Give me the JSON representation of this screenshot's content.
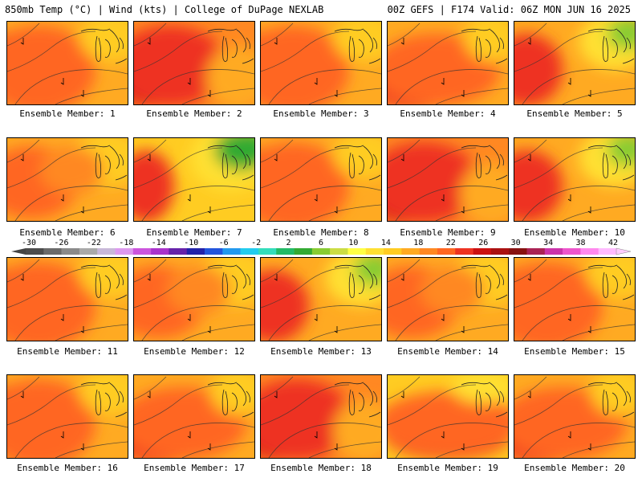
{
  "header": {
    "left_title": "850mb Temp (°C) | Wind (kts) | College of DuPage NEXLAB",
    "right_title": "00Z GEFS | F174 Valid: 06Z MON JUN 16 2025"
  },
  "colorbar": {
    "tick_labels": [
      "-30",
      "-26",
      "-22",
      "-18",
      "-14",
      "-10",
      "-6",
      "-2",
      "2",
      "6",
      "10",
      "14",
      "18",
      "22",
      "26",
      "30",
      "34",
      "38",
      "42"
    ],
    "colors": [
      "#4c4c4c",
      "#6a6a6a",
      "#8a8a8a",
      "#a9a9a9",
      "#c8b8d8",
      "#dd99ee",
      "#cc55dd",
      "#aa33cc",
      "#6622aa",
      "#2222aa",
      "#2255dd",
      "#2299ee",
      "#22ccee",
      "#33ddbb",
      "#22bb66",
      "#33aa33",
      "#88cc33",
      "#ccdd44",
      "#ffff44",
      "#ffe033",
      "#ffcc22",
      "#ffaa22",
      "#ff8822",
      "#ff6622",
      "#ee3322",
      "#cc1111",
      "#aa1111",
      "#881111",
      "#aa2255",
      "#cc33aa",
      "#ee55cc",
      "#ff88ee",
      "#ffbbff"
    ]
  },
  "panel_label_prefix": "Ensemble Member:",
  "panels": [
    {
      "member": "1",
      "label": "Ensemble Member: 1",
      "scheme": "hot-west"
    },
    {
      "member": "2",
      "label": "Ensemble Member: 2",
      "scheme": "very-hot-west"
    },
    {
      "member": "3",
      "label": "Ensemble Member: 3",
      "scheme": "hot-west"
    },
    {
      "member": "4",
      "label": "Ensemble Member: 4",
      "scheme": "hot-sw"
    },
    {
      "member": "5",
      "label": "Ensemble Member: 5",
      "scheme": "cool-ne"
    },
    {
      "member": "6",
      "label": "Ensemble Member: 6",
      "scheme": "warm"
    },
    {
      "member": "7",
      "label": "Ensemble Member: 7",
      "scheme": "cool-ne-strong"
    },
    {
      "member": "8",
      "label": "Ensemble Member: 8",
      "scheme": "hot-west"
    },
    {
      "member": "9",
      "label": "Ensemble Member: 9",
      "scheme": "very-hot-west"
    },
    {
      "member": "10",
      "label": "Ensemble Member: 10",
      "scheme": "cool-ne"
    },
    {
      "member": "11",
      "label": "Ensemble Member: 11",
      "scheme": "hot-west"
    },
    {
      "member": "12",
      "label": "Ensemble Member: 12",
      "scheme": "warm"
    },
    {
      "member": "13",
      "label": "Ensemble Member: 13",
      "scheme": "cool-ne"
    },
    {
      "member": "14",
      "label": "Ensemble Member: 14",
      "scheme": "warm"
    },
    {
      "member": "15",
      "label": "Ensemble Member: 15",
      "scheme": "hot-west"
    },
    {
      "member": "16",
      "label": "Ensemble Member: 16",
      "scheme": "hot-west"
    },
    {
      "member": "17",
      "label": "Ensemble Member: 17",
      "scheme": "hot-sw"
    },
    {
      "member": "18",
      "label": "Ensemble Member: 18",
      "scheme": "very-hot-west"
    },
    {
      "member": "19",
      "label": "Ensemble Member: 19",
      "scheme": "hot-south"
    },
    {
      "member": "20",
      "label": "Ensemble Member: 20",
      "scheme": "hot-sw"
    }
  ]
}
